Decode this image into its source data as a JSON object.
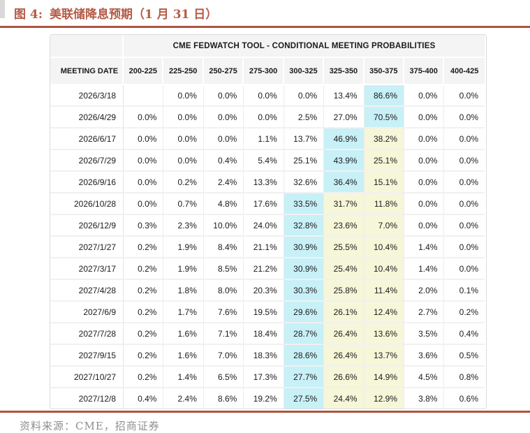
{
  "figure": {
    "label": "图 4:",
    "title": "美联储降息预期（1 月 31 日）"
  },
  "table": {
    "banner": "CME FEDWATCH TOOL - CONDITIONAL MEETING PROBABILITIES",
    "date_column_header": "MEETING DATE",
    "rate_columns": [
      "200-225",
      "225-250",
      "250-275",
      "275-300",
      "300-325",
      "325-350",
      "350-375",
      "375-400",
      "400-425"
    ],
    "rows": [
      {
        "date": "2026/3/18",
        "values": [
          "",
          "0.0%",
          "0.0%",
          "0.0%",
          "0.0%",
          "13.4%",
          "86.6%",
          "0.0%",
          "0.0%"
        ],
        "marks": [
          "",
          "",
          "",
          "",
          "",
          "",
          "b",
          "",
          ""
        ]
      },
      {
        "date": "2026/4/29",
        "values": [
          "0.0%",
          "0.0%",
          "0.0%",
          "0.0%",
          "2.5%",
          "27.0%",
          "70.5%",
          "0.0%",
          "0.0%"
        ],
        "marks": [
          "",
          "",
          "",
          "",
          "",
          "",
          "b",
          "",
          ""
        ]
      },
      {
        "date": "2026/6/17",
        "values": [
          "0.0%",
          "0.0%",
          "0.0%",
          "1.1%",
          "13.7%",
          "46.9%",
          "38.2%",
          "0.0%",
          "0.0%"
        ],
        "marks": [
          "",
          "",
          "",
          "",
          "",
          "b",
          "y",
          "",
          ""
        ]
      },
      {
        "date": "2026/7/29",
        "values": [
          "0.0%",
          "0.0%",
          "0.4%",
          "5.4%",
          "25.1%",
          "43.9%",
          "25.1%",
          "0.0%",
          "0.0%"
        ],
        "marks": [
          "",
          "",
          "",
          "",
          "",
          "b",
          "y",
          "",
          ""
        ]
      },
      {
        "date": "2026/9/16",
        "values": [
          "0.0%",
          "0.2%",
          "2.4%",
          "13.3%",
          "32.6%",
          "36.4%",
          "15.1%",
          "0.0%",
          "0.0%"
        ],
        "marks": [
          "",
          "",
          "",
          "",
          "",
          "b",
          "y",
          "",
          ""
        ]
      },
      {
        "date": "2026/10/28",
        "values": [
          "0.0%",
          "0.7%",
          "4.8%",
          "17.6%",
          "33.5%",
          "31.7%",
          "11.8%",
          "0.0%",
          "0.0%"
        ],
        "marks": [
          "",
          "",
          "",
          "",
          "b",
          "y",
          "y",
          "",
          ""
        ]
      },
      {
        "date": "2026/12/9",
        "values": [
          "0.3%",
          "2.3%",
          "10.0%",
          "24.0%",
          "32.8%",
          "23.6%",
          "7.0%",
          "0.0%",
          "0.0%"
        ],
        "marks": [
          "",
          "",
          "",
          "",
          "b",
          "y",
          "y",
          "",
          ""
        ]
      },
      {
        "date": "2027/1/27",
        "values": [
          "0.2%",
          "1.9%",
          "8.4%",
          "21.1%",
          "30.9%",
          "25.5%",
          "10.4%",
          "1.4%",
          "0.0%"
        ],
        "marks": [
          "",
          "",
          "",
          "",
          "b",
          "y",
          "y",
          "",
          ""
        ]
      },
      {
        "date": "2027/3/17",
        "values": [
          "0.2%",
          "1.9%",
          "8.5%",
          "21.2%",
          "30.9%",
          "25.4%",
          "10.4%",
          "1.4%",
          "0.0%"
        ],
        "marks": [
          "",
          "",
          "",
          "",
          "b",
          "y",
          "y",
          "",
          ""
        ]
      },
      {
        "date": "2027/4/28",
        "values": [
          "0.2%",
          "1.8%",
          "8.0%",
          "20.3%",
          "30.3%",
          "25.8%",
          "11.4%",
          "2.0%",
          "0.1%"
        ],
        "marks": [
          "",
          "",
          "",
          "",
          "b",
          "y",
          "y",
          "",
          ""
        ]
      },
      {
        "date": "2027/6/9",
        "values": [
          "0.2%",
          "1.7%",
          "7.6%",
          "19.5%",
          "29.6%",
          "26.1%",
          "12.4%",
          "2.7%",
          "0.2%"
        ],
        "marks": [
          "",
          "",
          "",
          "",
          "b",
          "y",
          "y",
          "",
          ""
        ]
      },
      {
        "date": "2027/7/28",
        "values": [
          "0.2%",
          "1.6%",
          "7.1%",
          "18.4%",
          "28.7%",
          "26.4%",
          "13.6%",
          "3.5%",
          "0.4%"
        ],
        "marks": [
          "",
          "",
          "",
          "",
          "b",
          "y",
          "y",
          "",
          ""
        ]
      },
      {
        "date": "2027/9/15",
        "values": [
          "0.2%",
          "1.6%",
          "7.0%",
          "18.3%",
          "28.6%",
          "26.4%",
          "13.7%",
          "3.6%",
          "0.5%"
        ],
        "marks": [
          "",
          "",
          "",
          "",
          "b",
          "y",
          "y",
          "",
          ""
        ]
      },
      {
        "date": "2027/10/27",
        "values": [
          "0.2%",
          "1.4%",
          "6.5%",
          "17.3%",
          "27.7%",
          "26.6%",
          "14.9%",
          "4.5%",
          "0.8%"
        ],
        "marks": [
          "",
          "",
          "",
          "",
          "b",
          "y",
          "y",
          "",
          ""
        ]
      },
      {
        "date": "2027/12/8",
        "values": [
          "0.4%",
          "2.4%",
          "8.6%",
          "19.2%",
          "27.5%",
          "24.4%",
          "12.9%",
          "3.8%",
          "0.6%"
        ],
        "marks": [
          "",
          "",
          "",
          "",
          "b",
          "y",
          "y",
          "",
          ""
        ]
      }
    ]
  },
  "footer": {
    "source": "资料来源：CME，招商证券"
  },
  "colors": {
    "accent_red": "#ad5440",
    "title_red": "#b55b45",
    "highlight_primary_blue": "#c8f0f7",
    "highlight_secondary_yellow": "#f6f6d9",
    "header_background": "#f4f4f4",
    "source_text_gray": "#8f8f8f"
  }
}
